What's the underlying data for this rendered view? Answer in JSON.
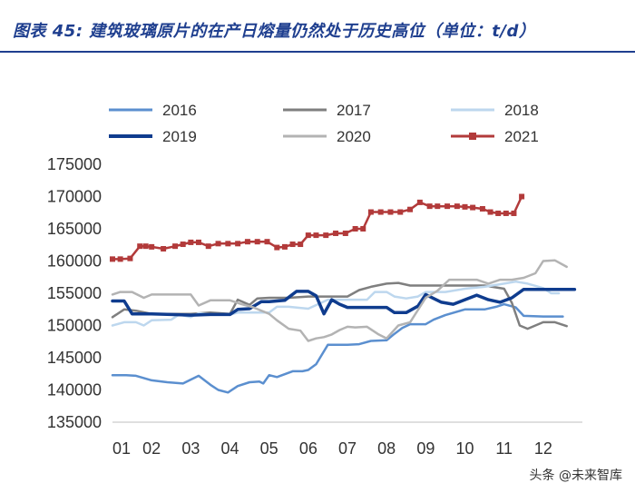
{
  "header": {
    "title": "图表 45:  建筑玻璃原片的在产日熔量仍然处于历史高位（单位：t/d）"
  },
  "watermark": "头条 @未来智库",
  "chart_data": {
    "type": "line",
    "title": "建筑玻璃原片的在产日熔量仍然处于历史高位",
    "unit": "t/d",
    "xlabel": "",
    "ylabel": "",
    "x_ticks": [
      "01",
      "02",
      "03",
      "04",
      "05",
      "06",
      "07",
      "08",
      "09",
      "10",
      "11",
      "12"
    ],
    "y_ticks": [
      135000,
      140000,
      145000,
      150000,
      155000,
      160000,
      165000,
      170000,
      175000
    ],
    "ylim": [
      135000,
      175000
    ],
    "xlim": [
      1,
      13
    ],
    "legend_position": "top",
    "series": [
      {
        "name": "2016",
        "color": "#5b8fcf",
        "width": 2.5,
        "marker": "none",
        "x": [
          1,
          1.35,
          1.6,
          2,
          2.4,
          2.8,
          3,
          3.2,
          3.5,
          3.7,
          3.95,
          4.2,
          4.5,
          4.75,
          4.85,
          5,
          5.2,
          5.6,
          5.85,
          6,
          6.2,
          6.5,
          7,
          7.3,
          7.6,
          8,
          8.2,
          8.4,
          8.6,
          9,
          9.2,
          9.5,
          10,
          10.3,
          10.5,
          10.8,
          11,
          11.3,
          11.5,
          12,
          12.5
        ],
        "y": [
          142300,
          142300,
          142200,
          141500,
          141200,
          141000,
          141600,
          142200,
          140800,
          140000,
          139600,
          140600,
          141200,
          141300,
          141000,
          142300,
          142000,
          142900,
          142900,
          143100,
          144000,
          147000,
          147000,
          147100,
          147600,
          147700,
          148700,
          149600,
          150200,
          150200,
          150900,
          151600,
          152500,
          152500,
          152500,
          152900,
          153300,
          152800,
          151500,
          151400,
          151400
        ]
      },
      {
        "name": "2017",
        "color": "#7f7f7f",
        "width": 2.5,
        "marker": "none",
        "x": [
          1,
          1.3,
          1.6,
          2,
          2.5,
          3,
          3.5,
          4,
          4.2,
          4.5,
          4.7,
          5,
          5.5,
          6,
          6.3,
          6.6,
          7,
          7.3,
          7.6,
          8,
          8.3,
          8.6,
          9,
          9.5,
          10,
          10.5,
          11,
          11.2,
          11.4,
          11.6,
          11.8,
          12,
          12.3,
          12.6
        ],
        "y": [
          151300,
          152500,
          152300,
          151800,
          151800,
          151800,
          152000,
          151800,
          154000,
          153200,
          154200,
          154300,
          154300,
          154500,
          154500,
          154500,
          154500,
          155500,
          156000,
          156500,
          156600,
          156200,
          156200,
          156200,
          156200,
          156200,
          155700,
          153500,
          150000,
          149500,
          150000,
          150500,
          150500,
          149900
        ]
      },
      {
        "name": "2018",
        "color": "#bdd7ee",
        "width": 2.5,
        "marker": "none",
        "x": [
          1,
          1.3,
          1.6,
          1.8,
          2,
          2.5,
          2.7,
          3,
          3.2,
          3.5,
          4,
          4.2,
          4.5,
          5,
          5.2,
          5.5,
          6,
          6.5,
          7,
          7.5,
          7.7,
          8,
          8.2,
          8.5,
          8.8,
          9,
          9.5,
          10,
          10.5,
          11,
          11.3,
          11.6,
          12,
          12.2,
          12.4
        ],
        "y": [
          150000,
          150500,
          150500,
          150000,
          150800,
          150900,
          151700,
          151300,
          151900,
          151700,
          151700,
          152000,
          152000,
          152000,
          152900,
          152900,
          152600,
          154000,
          154000,
          154000,
          155200,
          155200,
          154500,
          154200,
          154500,
          155200,
          155200,
          155700,
          156000,
          156500,
          156800,
          156500,
          155800,
          155000,
          155000
        ]
      },
      {
        "name": "2019",
        "color": "#0f3c8e",
        "width": 3.5,
        "marker": "none",
        "x": [
          1,
          1.3,
          1.5,
          2,
          2.5,
          3,
          3.5,
          4,
          4.2,
          4.5,
          4.8,
          5,
          5.4,
          5.7,
          6,
          6.2,
          6.4,
          6.6,
          6.8,
          7,
          7.5,
          8,
          8.2,
          8.5,
          8.8,
          9,
          9.4,
          9.7,
          10,
          10.3,
          10.6,
          10.9,
          11.2,
          11.5,
          11.8,
          12,
          12.3,
          12.5,
          12.8
        ],
        "y": [
          153800,
          153800,
          151800,
          151800,
          151700,
          151600,
          151700,
          151700,
          152500,
          152600,
          153700,
          153700,
          153900,
          155300,
          155300,
          154600,
          151800,
          154000,
          153300,
          152800,
          152800,
          152800,
          152000,
          152000,
          153000,
          154800,
          153600,
          153300,
          154000,
          154700,
          154000,
          153600,
          154300,
          155600,
          155600,
          155600,
          155600,
          155600,
          155600
        ]
      },
      {
        "name": "2020",
        "color": "#b3b3b3",
        "width": 2.5,
        "marker": "none",
        "x": [
          1,
          1.2,
          1.5,
          1.8,
          2,
          2.5,
          2.8,
          3,
          3.2,
          3.5,
          4,
          4.3,
          4.6,
          5,
          5.2,
          5.5,
          5.8,
          6,
          6.2,
          6.4,
          6.6,
          6.8,
          7,
          7.2,
          7.5,
          7.8,
          8,
          8.3,
          8.6,
          9,
          9.3,
          9.6,
          10,
          10.3,
          10.6,
          10.9,
          11.2,
          11.5,
          11.8,
          12,
          12.3,
          12.6
        ],
        "y": [
          154800,
          155200,
          155200,
          154300,
          154800,
          154800,
          154800,
          154800,
          153100,
          153900,
          153900,
          153300,
          152800,
          151800,
          150800,
          149500,
          149200,
          147600,
          148000,
          148200,
          148600,
          149300,
          149800,
          149700,
          149800,
          148600,
          148000,
          150000,
          150500,
          154300,
          155400,
          157100,
          157100,
          157100,
          156500,
          157100,
          157100,
          157400,
          158100,
          160000,
          160100,
          159100
        ]
      },
      {
        "name": "2021",
        "color": "#b23a3a",
        "width": 2.5,
        "marker": "square",
        "x": [
          1,
          1.2,
          1.45,
          1.7,
          1.85,
          2,
          2.3,
          2.6,
          2.8,
          3,
          3.2,
          3.45,
          3.7,
          3.95,
          4.2,
          4.45,
          4.7,
          4.95,
          5.2,
          5.4,
          5.6,
          5.8,
          6,
          6.2,
          6.45,
          6.7,
          6.95,
          7.2,
          7.4,
          7.6,
          7.85,
          8.1,
          8.35,
          8.6,
          8.85,
          9.1,
          9.3,
          9.55,
          9.8,
          10,
          10.2,
          10.45,
          10.65,
          10.85,
          11.05,
          11.25,
          11.45
        ],
        "y": [
          160300,
          160300,
          160400,
          162300,
          162300,
          162200,
          161900,
          162300,
          162600,
          162900,
          162900,
          162300,
          162700,
          162700,
          162700,
          163000,
          163000,
          163000,
          162100,
          162200,
          162600,
          162600,
          164000,
          164000,
          164000,
          164300,
          164300,
          165000,
          165000,
          167600,
          167600,
          167600,
          167600,
          168000,
          169100,
          168500,
          168500,
          168500,
          168500,
          168400,
          168300,
          168100,
          167600,
          167400,
          167400,
          167400,
          170000
        ]
      }
    ]
  }
}
